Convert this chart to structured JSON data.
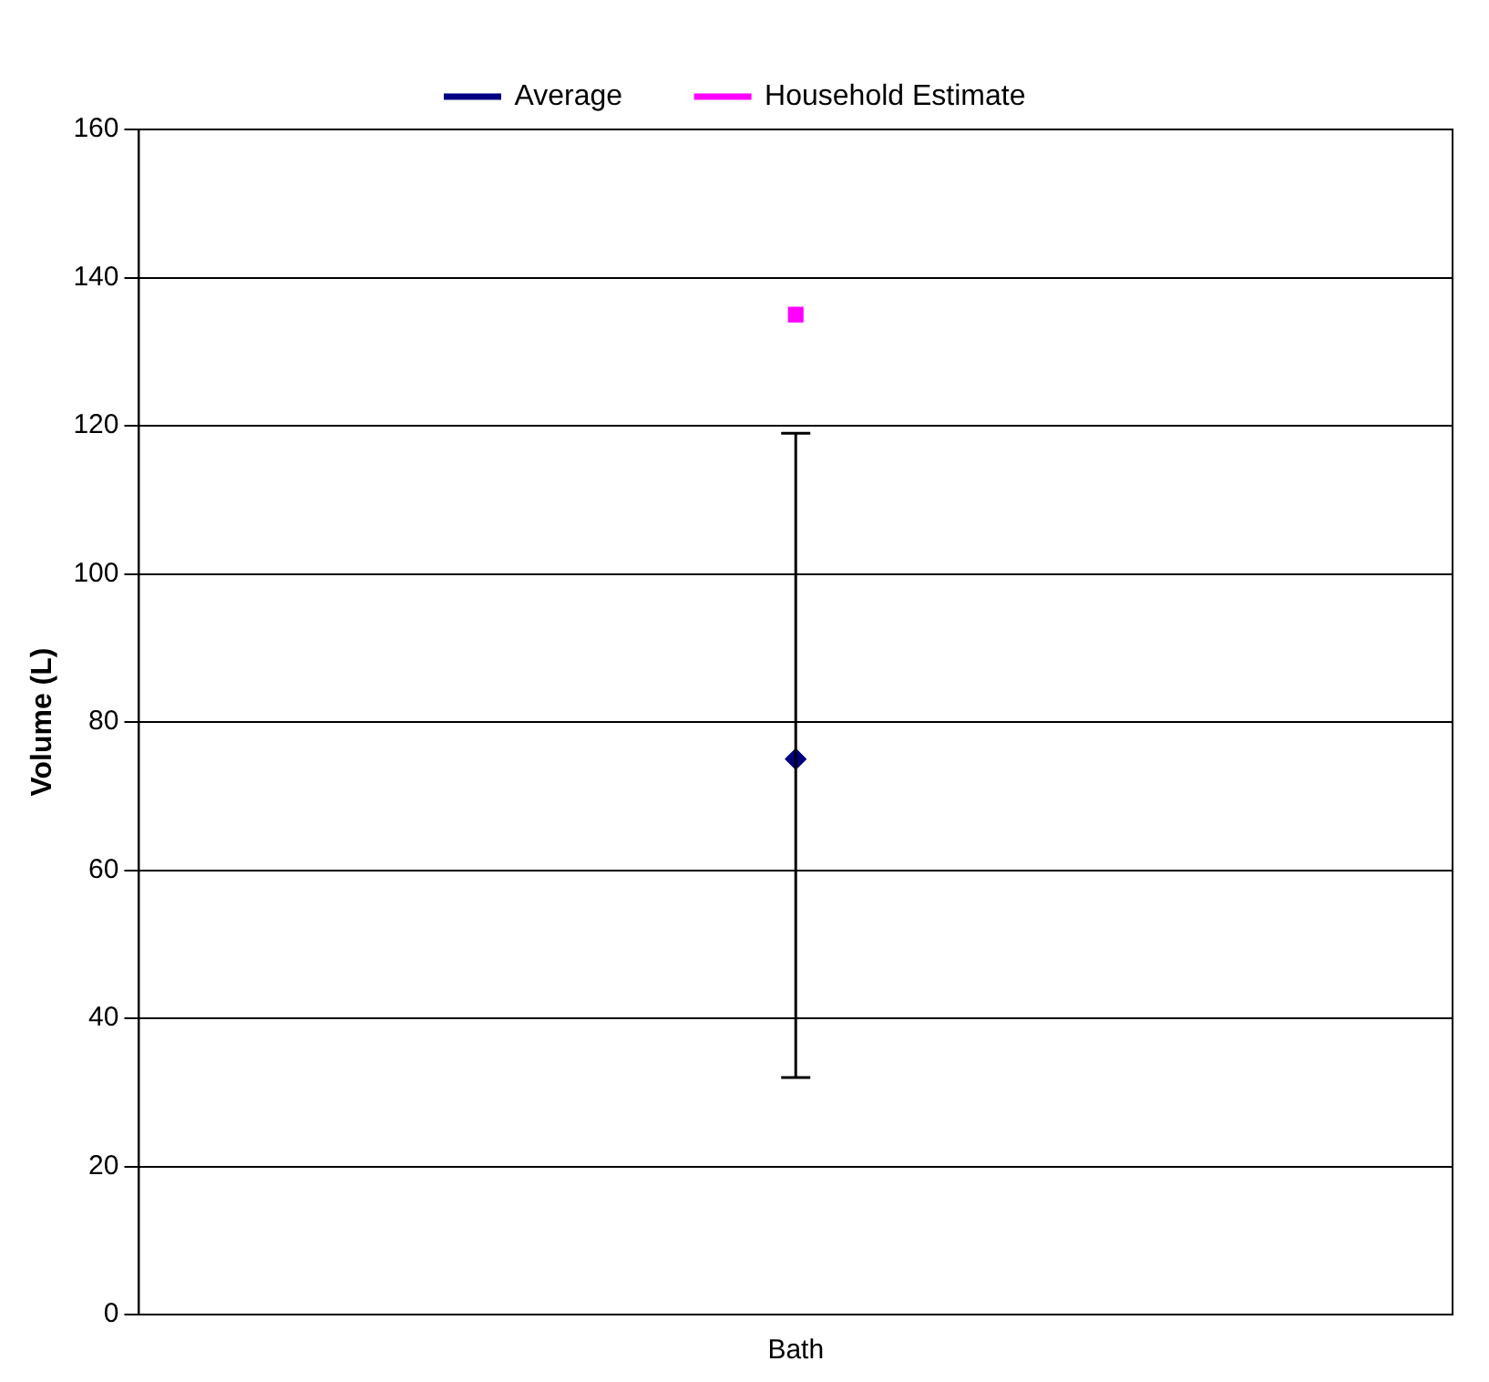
{
  "chart_data": {
    "type": "line",
    "ylabel": "Volume (L)",
    "categories": [
      "Bath"
    ],
    "series": [
      {
        "name": "Average",
        "color": "#000080",
        "values": [
          75
        ],
        "marker": "diamond",
        "errors": [
          [
            32,
            119
          ]
        ]
      },
      {
        "name": "Household Estimate",
        "color": "#ff00ff",
        "values": [
          135
        ],
        "marker": "square"
      }
    ],
    "ylim": [
      0,
      160
    ],
    "yticks": [
      0,
      20,
      40,
      60,
      80,
      100,
      120,
      140,
      160
    ],
    "grid": "y",
    "legend": "top"
  }
}
